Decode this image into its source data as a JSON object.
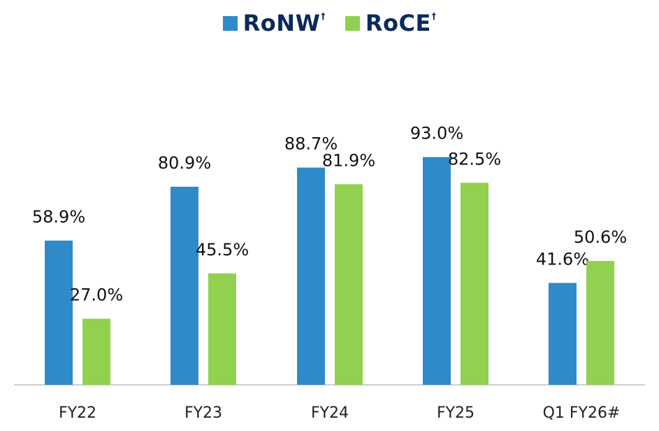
{
  "chart_data": {
    "type": "bar",
    "title": "",
    "xlabel": "",
    "ylabel": "",
    "categories": [
      "FY22",
      "FY23",
      "FY24",
      "FY25",
      "Q1 FY26#"
    ],
    "series": [
      {
        "name": "RoNW",
        "name_marker": "†",
        "color": "#2f8ac9",
        "values": [
          58.9,
          80.9,
          88.7,
          93.0,
          41.6
        ],
        "labels": [
          "58.9%",
          "80.9%",
          "88.7%",
          "93.0%",
          "41.6%"
        ]
      },
      {
        "name": "RoCE",
        "name_marker": "†",
        "color": "#92d050",
        "values": [
          27.0,
          45.5,
          81.9,
          82.5,
          50.6
        ],
        "labels": [
          "27.0%",
          "45.5%",
          "81.9%",
          "82.5%",
          "50.6%"
        ]
      }
    ],
    "ylim": [
      0,
      100
    ],
    "grid": false,
    "legend_position": "top-center",
    "axis_color": "#bfbfbf"
  }
}
